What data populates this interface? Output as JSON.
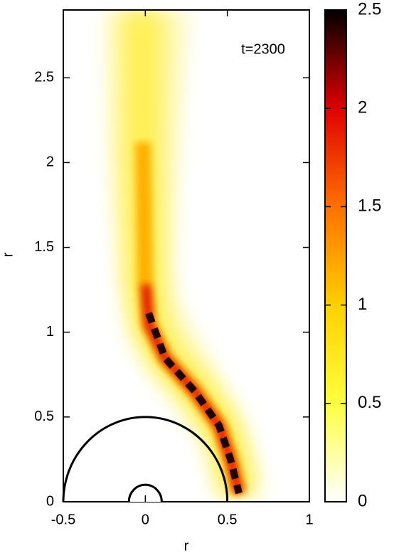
{
  "chart_data": {
    "type": "heatmap",
    "annotation": "t=2300",
    "xlabel": "r",
    "ylabel": "r",
    "xlim": [
      -0.5,
      1
    ],
    "xticks": [
      -0.5,
      0,
      0.5,
      1
    ],
    "ylim": [
      0,
      2.9
    ],
    "yticks": [
      0,
      0.5,
      1,
      1.5,
      2,
      2.5
    ],
    "colorbar": {
      "lim": [
        0,
        2.5
      ],
      "ticks": [
        0,
        0.5,
        1,
        1.5,
        2,
        2.5
      ],
      "colormap": [
        "#ffffff",
        "#ffff40",
        "#ffd000",
        "#ff7000",
        "#e00000",
        "#000000"
      ]
    },
    "boundary_radii": [
      0.5,
      0.1
    ]
  }
}
